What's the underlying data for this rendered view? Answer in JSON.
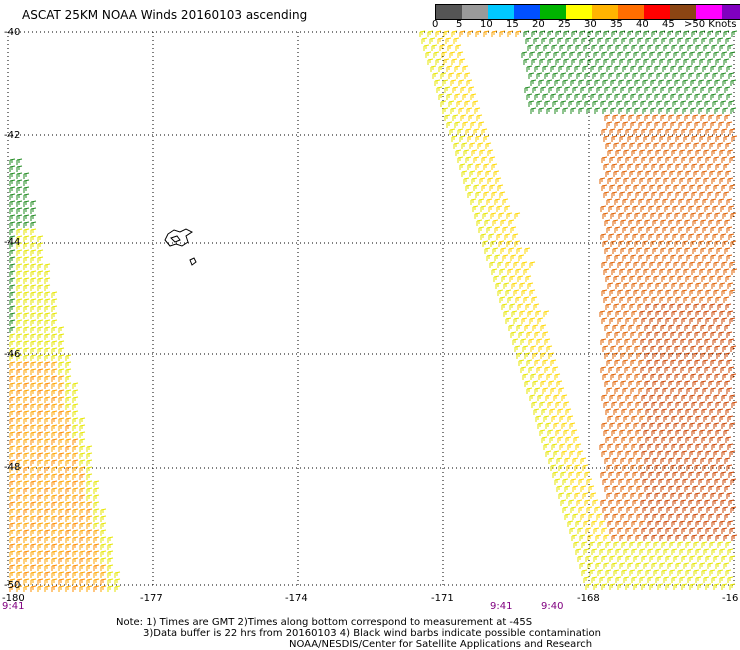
{
  "title": "ASCAT 25KM NOAA Winds 20160103 ascending",
  "legend": {
    "labels": [
      "0",
      "5",
      "10",
      "15",
      "20",
      "25",
      "30",
      "35",
      "40",
      "45",
      ">50 Knots"
    ],
    "colors": [
      "#555555",
      "#9a9a9a",
      "#00c8ff",
      "#0050ff",
      "#00b400",
      "#ffff00",
      "#ffb400",
      "#ff6e00",
      "#ff0000",
      "#8b4513",
      "#ff00ff",
      "#8000c0"
    ]
  },
  "axes": {
    "lat_labels": [
      "-40",
      "-42",
      "-44",
      "-46",
      "-48",
      "-50"
    ],
    "lon_labels": [
      "-180",
      "-177",
      "-174",
      "-171",
      "-168",
      "-16"
    ]
  },
  "times": [
    "9:41",
    "9:41",
    "9:40"
  ],
  "notes": [
    "Note: 1) Times are GMT 2)Times along bottom correspond to measurement at -45S",
    "3)Data buffer is 22 hrs from 20160103 4) Black wind barbs indicate possible contamination",
    "NOAA/NESDIS/Center for Satellite Applications and Research"
  ]
}
